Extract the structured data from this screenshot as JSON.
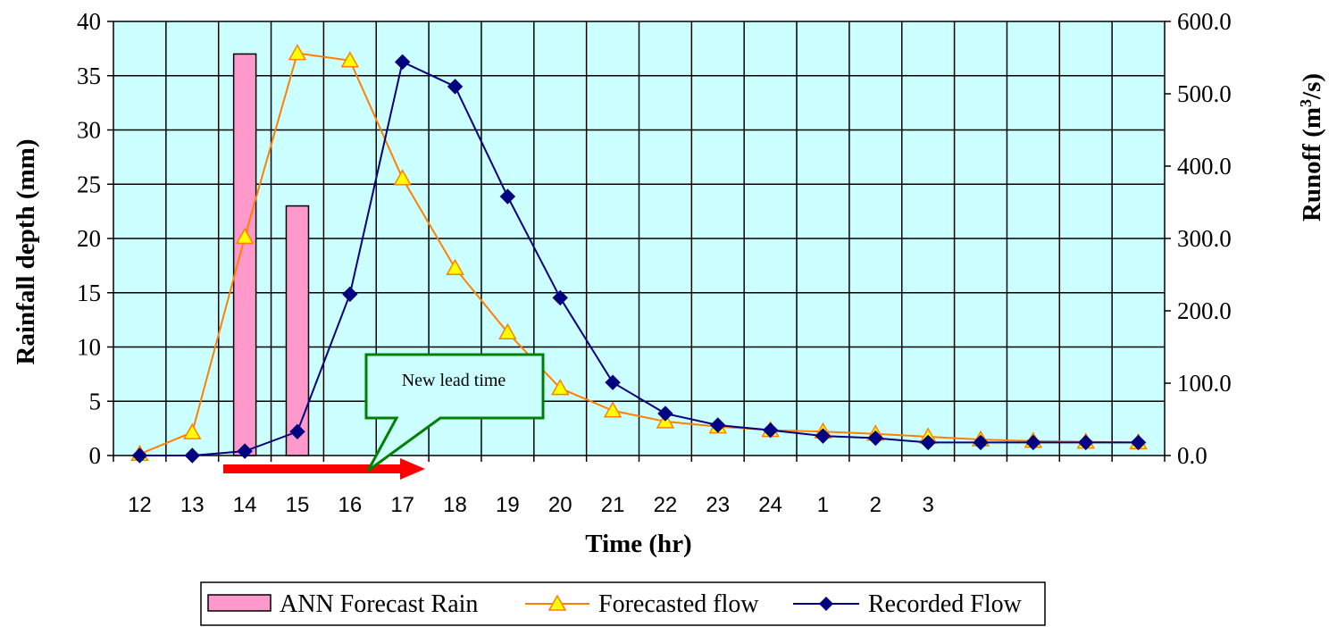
{
  "chart_data": {
    "type": "bar+line",
    "xlabel": "Time (hr)",
    "ylabel_left": "Rainfall depth (mm)",
    "ylabel_right": "Runoff (m",
    "ylabel_right_sup": "3",
    "ylabel_right_suffix": "/s)",
    "y_left_range": [
      0,
      40
    ],
    "y_left_ticks": [
      "0",
      "5",
      "10",
      "15",
      "20",
      "25",
      "30",
      "35",
      "40"
    ],
    "y_right_range": [
      0,
      600
    ],
    "y_right_ticks": [
      "0.0",
      "100.0",
      "200.0",
      "300.0",
      "400.0",
      "500.0",
      "600.0"
    ],
    "x_tick_labels": [
      "12",
      "13",
      "14",
      "15",
      "16",
      "17",
      "18",
      "19",
      "20",
      "21",
      "22",
      "23",
      "24",
      "1",
      "2",
      "3"
    ],
    "num_slots": 20,
    "grid": true,
    "plot_background": "#ccffff",
    "series": [
      {
        "name": "ANN Forecast Rain",
        "kind": "bar",
        "axis": "left",
        "color": "#ff99cc",
        "values": [
          null,
          null,
          37,
          23,
          null,
          null,
          null,
          null,
          null,
          null,
          null,
          null,
          null,
          null,
          null,
          null,
          null,
          null,
          null,
          null
        ]
      },
      {
        "name": "Forecasted flow",
        "kind": "line",
        "axis": "right",
        "color": "#ff8000",
        "marker": "triangle",
        "marker_fill": "#ffff00",
        "values": [
          2,
          32,
          302,
          556,
          546,
          383,
          259,
          170,
          93,
          62,
          47,
          40,
          35,
          33,
          30,
          26,
          22,
          20,
          19,
          18
        ]
      },
      {
        "name": "Recorded Flow",
        "kind": "line",
        "axis": "right",
        "color": "#000080",
        "marker": "diamond",
        "marker_fill": "#000080",
        "values": [
          0,
          0,
          6,
          33,
          223,
          544,
          510,
          358,
          218,
          101,
          58,
          42,
          35,
          27,
          24,
          18,
          18,
          18,
          18,
          18
        ]
      }
    ],
    "annotation": {
      "text": "New lead time",
      "arrow_color": "#ff0000",
      "box_color": "#008000"
    },
    "legend_position": "bottom"
  }
}
